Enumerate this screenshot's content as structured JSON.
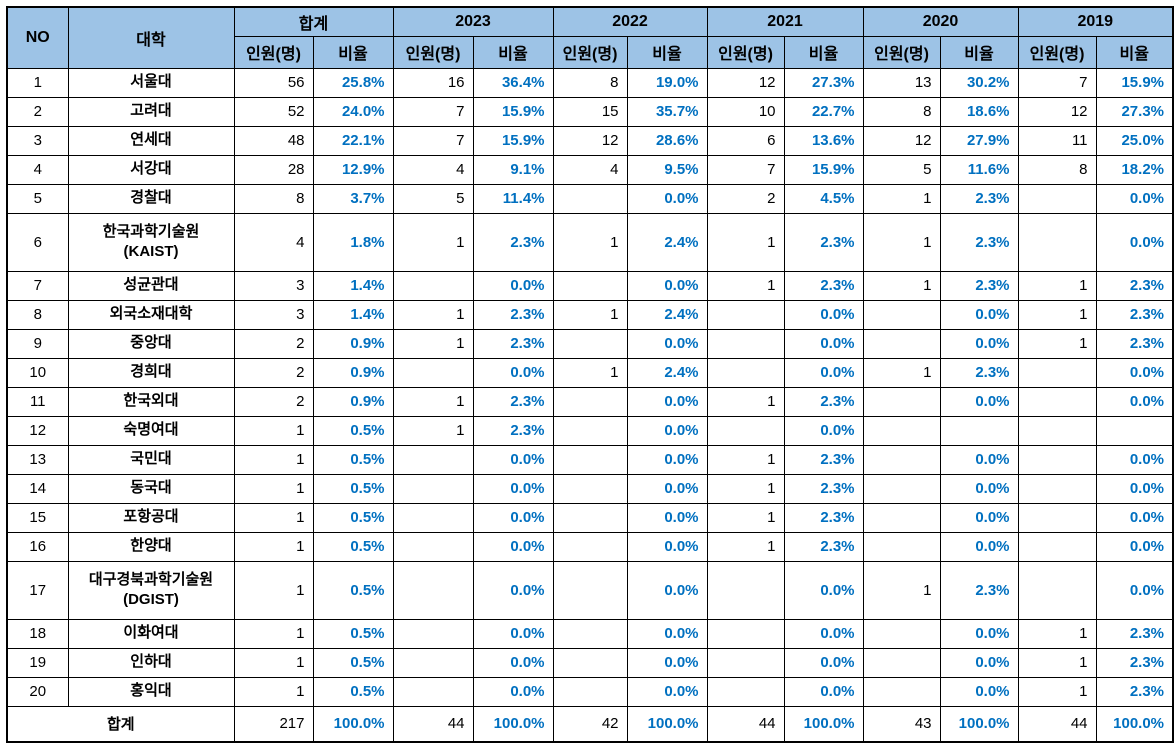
{
  "chart_data": {
    "type": "table",
    "header": {
      "no": "NO",
      "university": "대학",
      "count": "인원(명)",
      "ratio": "비율",
      "column_groups": [
        "합계",
        "2023",
        "2022",
        "2021",
        "2020",
        "2019"
      ]
    },
    "rows": [
      {
        "no": "1",
        "university": "서울대",
        "cells": [
          "56",
          "25.8%",
          "16",
          "36.4%",
          "8",
          "19.0%",
          "12",
          "27.3%",
          "13",
          "30.2%",
          "7",
          "15.9%"
        ]
      },
      {
        "no": "2",
        "university": "고려대",
        "cells": [
          "52",
          "24.0%",
          "7",
          "15.9%",
          "15",
          "35.7%",
          "10",
          "22.7%",
          "8",
          "18.6%",
          "12",
          "27.3%"
        ]
      },
      {
        "no": "3",
        "university": "연세대",
        "cells": [
          "48",
          "22.1%",
          "7",
          "15.9%",
          "12",
          "28.6%",
          "6",
          "13.6%",
          "12",
          "27.9%",
          "11",
          "25.0%"
        ]
      },
      {
        "no": "4",
        "university": "서강대",
        "cells": [
          "28",
          "12.9%",
          "4",
          "9.1%",
          "4",
          "9.5%",
          "7",
          "15.9%",
          "5",
          "11.6%",
          "8",
          "18.2%"
        ]
      },
      {
        "no": "5",
        "university": "경찰대",
        "cells": [
          "8",
          "3.7%",
          "5",
          "11.4%",
          "",
          "0.0%",
          "2",
          "4.5%",
          "1",
          "2.3%",
          "",
          "0.0%"
        ]
      },
      {
        "no": "6",
        "university": "한국과학기술원\n(KAIST)",
        "cells": [
          "4",
          "1.8%",
          "1",
          "2.3%",
          "1",
          "2.4%",
          "1",
          "2.3%",
          "1",
          "2.3%",
          "",
          "0.0%"
        ]
      },
      {
        "no": "7",
        "university": "성균관대",
        "cells": [
          "3",
          "1.4%",
          "",
          "0.0%",
          "",
          "0.0%",
          "1",
          "2.3%",
          "1",
          "2.3%",
          "1",
          "2.3%"
        ]
      },
      {
        "no": "8",
        "university": "외국소재대학",
        "cells": [
          "3",
          "1.4%",
          "1",
          "2.3%",
          "1",
          "2.4%",
          "",
          "0.0%",
          "",
          "0.0%",
          "1",
          "2.3%"
        ]
      },
      {
        "no": "9",
        "university": "중앙대",
        "cells": [
          "2",
          "0.9%",
          "1",
          "2.3%",
          "",
          "0.0%",
          "",
          "0.0%",
          "",
          "0.0%",
          "1",
          "2.3%"
        ]
      },
      {
        "no": "10",
        "university": "경희대",
        "cells": [
          "2",
          "0.9%",
          "",
          "0.0%",
          "1",
          "2.4%",
          "",
          "0.0%",
          "1",
          "2.3%",
          "",
          "0.0%"
        ]
      },
      {
        "no": "11",
        "university": "한국외대",
        "cells": [
          "2",
          "0.9%",
          "1",
          "2.3%",
          "",
          "0.0%",
          "1",
          "2.3%",
          "",
          "0.0%",
          "",
          "0.0%"
        ]
      },
      {
        "no": "12",
        "university": "숙명여대",
        "cells": [
          "1",
          "0.5%",
          "1",
          "2.3%",
          "",
          "0.0%",
          "",
          "0.0%",
          "",
          "",
          "",
          ""
        ]
      },
      {
        "no": "13",
        "university": "국민대",
        "cells": [
          "1",
          "0.5%",
          "",
          "0.0%",
          "",
          "0.0%",
          "1",
          "2.3%",
          "",
          "0.0%",
          "",
          "0.0%"
        ]
      },
      {
        "no": "14",
        "university": "동국대",
        "cells": [
          "1",
          "0.5%",
          "",
          "0.0%",
          "",
          "0.0%",
          "1",
          "2.3%",
          "",
          "0.0%",
          "",
          "0.0%"
        ]
      },
      {
        "no": "15",
        "university": "포항공대",
        "cells": [
          "1",
          "0.5%",
          "",
          "0.0%",
          "",
          "0.0%",
          "1",
          "2.3%",
          "",
          "0.0%",
          "",
          "0.0%"
        ]
      },
      {
        "no": "16",
        "university": "한양대",
        "cells": [
          "1",
          "0.5%",
          "",
          "0.0%",
          "",
          "0.0%",
          "1",
          "2.3%",
          "",
          "0.0%",
          "",
          "0.0%"
        ]
      },
      {
        "no": "17",
        "university": "대구경북과학기술원\n(DGIST)",
        "cells": [
          "1",
          "0.5%",
          "",
          "0.0%",
          "",
          "0.0%",
          "",
          "0.0%",
          "1",
          "2.3%",
          "",
          "0.0%"
        ]
      },
      {
        "no": "18",
        "university": "이화여대",
        "cells": [
          "1",
          "0.5%",
          "",
          "0.0%",
          "",
          "0.0%",
          "",
          "0.0%",
          "",
          "0.0%",
          "1",
          "2.3%"
        ]
      },
      {
        "no": "19",
        "university": "인하대",
        "cells": [
          "1",
          "0.5%",
          "",
          "0.0%",
          "",
          "0.0%",
          "",
          "0.0%",
          "",
          "0.0%",
          "1",
          "2.3%"
        ]
      },
      {
        "no": "20",
        "university": "홍익대",
        "cells": [
          "1",
          "0.5%",
          "",
          "0.0%",
          "",
          "0.0%",
          "",
          "0.0%",
          "",
          "0.0%",
          "1",
          "2.3%"
        ]
      }
    ],
    "footer": {
      "label": "합계",
      "cells": [
        "217",
        "100.0%",
        "44",
        "100.0%",
        "42",
        "100.0%",
        "44",
        "100.0%",
        "43",
        "100.0%",
        "44",
        "100.0%"
      ]
    }
  },
  "colors": {
    "header_bg": "#9DC3E6",
    "ratio_text": "#0070C0",
    "border": "#000000",
    "body_text": "#000000"
  }
}
